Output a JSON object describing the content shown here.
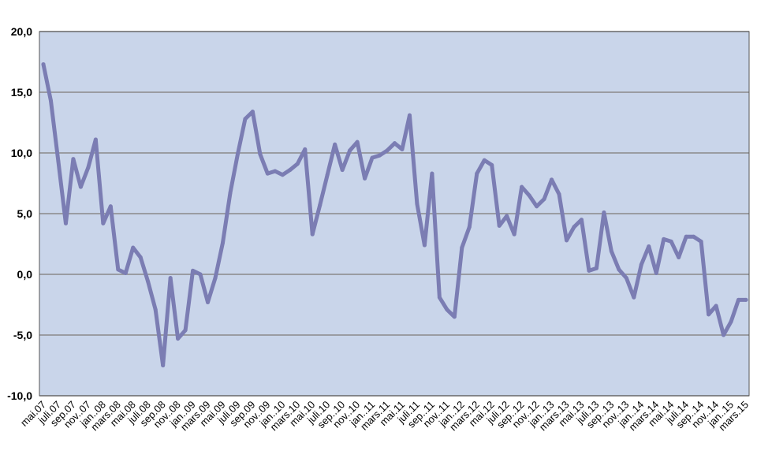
{
  "chart_data": {
    "type": "line",
    "title": "",
    "xlabel": "",
    "ylabel": "",
    "ylim": [
      -10,
      20
    ],
    "yticks": [
      -10,
      -5,
      0,
      5,
      10,
      15,
      20
    ],
    "ytick_labels": [
      "-10,0",
      "-5,0",
      "0,0",
      "5,0",
      "10,0",
      "15,0",
      "20,0"
    ],
    "grid": true,
    "legend": "none",
    "colors": {
      "plot_bg": "#c9d5ea",
      "line": "#7b7db3",
      "grid": "#8a8a8a",
      "frame": "#555555"
    },
    "x_tick_labels": [
      "mai.07",
      "juli.07",
      "sep.07",
      "nov..07",
      "jan..08",
      "mars.08",
      "mai.08",
      "juli.08",
      "sep.08",
      "nov..08",
      "jan..09",
      "mars.09",
      "mai.09",
      "juli.09",
      "sep.09",
      "nov..09",
      "jan..10",
      "mars.10",
      "mai.10",
      "juli.10",
      "sep..10",
      "nov..10",
      "jan..11",
      "mars.11",
      "mai.11",
      "juli.11",
      "sep..11",
      "nov..11",
      "jan..12",
      "mars.12",
      "mai.12",
      "juli.12",
      "sep..12",
      "nov..12",
      "jan..13",
      "mars.13",
      "mai.13",
      "juli.13",
      "sep..13",
      "nov..13",
      "jan..14",
      "mars.14",
      "mai.14",
      "juli.14",
      "sep..14",
      "nov..14",
      "jan..15",
      "mars.15"
    ],
    "series": [
      {
        "values": [
          17.3,
          14.3,
          9.3,
          4.2,
          9.5,
          7.2,
          8.8,
          11.1,
          4.2,
          5.6,
          0.4,
          0.1,
          2.2,
          1.4,
          -0.6,
          -2.9,
          -7.5,
          -0.3,
          -5.3,
          -4.6,
          0.3,
          0.0,
          -2.3,
          -0.3,
          2.6,
          6.7,
          9.9,
          12.8,
          13.4,
          9.9,
          8.3,
          8.5,
          8.2,
          8.6,
          9.1,
          10.3,
          3.3,
          5.7,
          8.2,
          10.7,
          8.6,
          10.2,
          10.9,
          7.9,
          9.6,
          9.8,
          10.2,
          10.8,
          10.3,
          13.1,
          5.8,
          2.4,
          8.3,
          -1.9,
          -2.9,
          -3.5,
          2.2,
          3.9,
          8.3,
          9.4,
          9.0,
          4.0,
          4.8,
          3.3,
          7.2,
          6.5,
          5.6,
          6.2,
          7.8,
          6.6,
          2.8,
          3.9,
          4.5,
          0.3,
          0.5,
          5.1,
          1.9,
          0.4,
          -0.3,
          -1.9,
          0.8,
          2.3,
          0.1,
          2.9,
          2.7,
          1.4,
          3.1,
          3.1,
          2.7,
          -3.3,
          -2.6,
          -5.0,
          -3.9,
          -2.1,
          -2.1
        ]
      }
    ]
  }
}
